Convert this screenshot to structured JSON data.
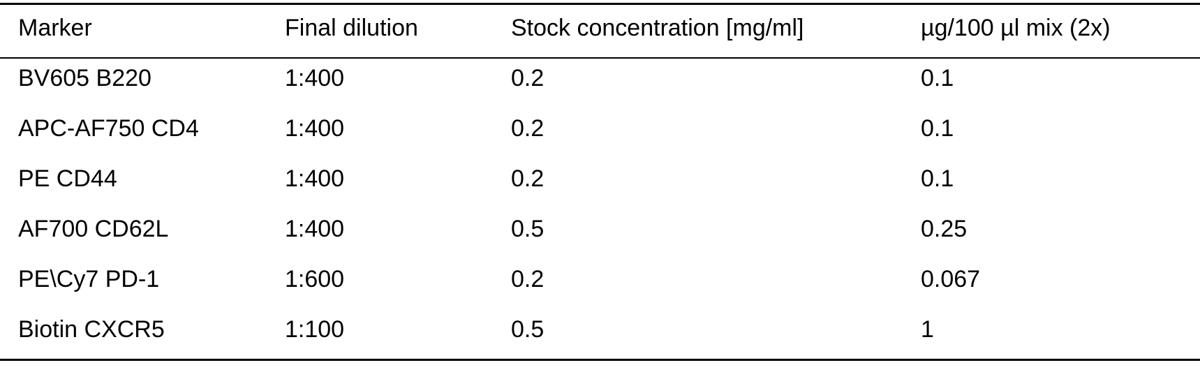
{
  "table": {
    "header": [
      "Marker",
      "Final dilution",
      "Stock concentration [mg/ml]",
      "µg/100 µl mix (2x)"
    ],
    "rows": [
      [
        "BV605 B220",
        "1:400",
        "0.2",
        "0.1"
      ],
      [
        "APC-AF750 CD4",
        "1:400",
        "0.2",
        "0.1"
      ],
      [
        "PE CD44",
        "1:400",
        "0.2",
        "0.1"
      ],
      [
        "AF700 CD62L",
        "1:400",
        "0.5",
        "0.25"
      ],
      [
        "PE\\Cy7 PD-1",
        "1:600",
        "0.2",
        "0.067"
      ],
      [
        "Biotin CXCR5",
        "1:100",
        "0.5",
        "1"
      ]
    ]
  }
}
